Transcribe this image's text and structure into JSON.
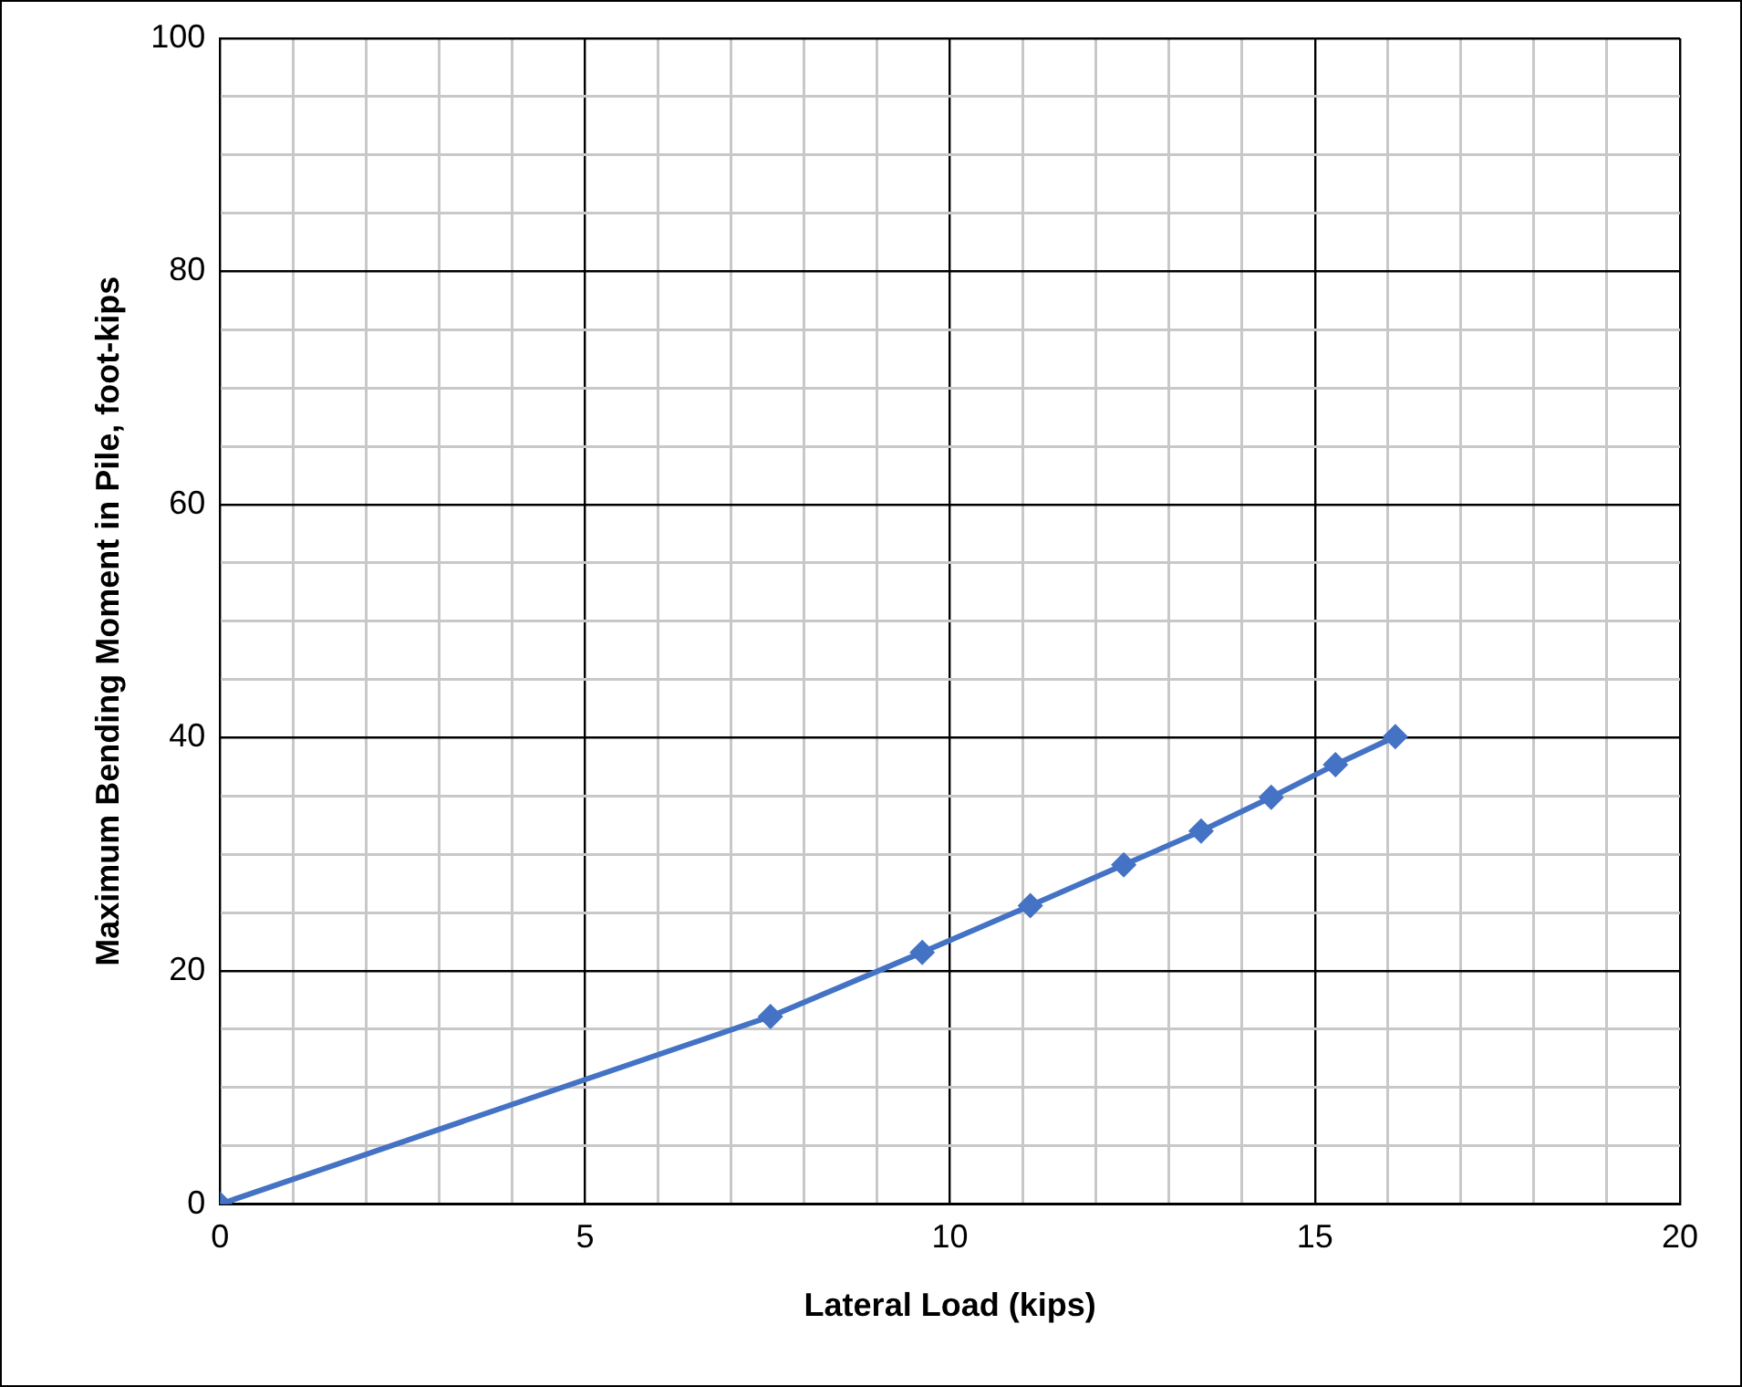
{
  "chart_data": {
    "type": "line",
    "xlabel": "Lateral Load (kips)",
    "ylabel": "Maximum Bending Moment in Pile, foot-kips",
    "x": [
      0,
      7.54,
      9.62,
      11.1,
      12.38,
      13.44,
      14.4,
      15.28,
      16.1
    ],
    "series": [
      {
        "color": "#4472c4",
        "values": [
          0,
          16.1,
          21.6,
          25.6,
          29.1,
          32.0,
          34.9,
          37.7,
          40.1
        ]
      }
    ],
    "xlim": [
      0,
      20
    ],
    "xticks": [
      0,
      {
        "value": 1,
        "label": null
      },
      {
        "value": 2,
        "label": null
      },
      {
        "value": 3,
        "label": null
      },
      {
        "value": 4,
        "label": null
      },
      5,
      {
        "value": 6,
        "label": null
      },
      {
        "value": 7,
        "label": null
      },
      {
        "value": 8,
        "label": null
      },
      {
        "value": 9,
        "label": null
      },
      10,
      {
        "value": 11,
        "label": null
      },
      {
        "value": 12,
        "label": null
      },
      {
        "value": 13,
        "label": null
      },
      {
        "value": 14,
        "label": null
      },
      15,
      {
        "value": 16,
        "label": null
      },
      {
        "value": 17,
        "label": null
      },
      {
        "value": 18,
        "label": null
      },
      {
        "value": 19,
        "label": null
      },
      20
    ],
    "ylim": [
      0,
      100
    ],
    "yticks": [
      0,
      {
        "value": 5,
        "label": null
      },
      {
        "value": 10,
        "label": null
      },
      {
        "value": 15,
        "label": null
      },
      20,
      {
        "value": 25,
        "label": null
      },
      {
        "value": 30,
        "label": null
      },
      {
        "value": 35,
        "label": null
      },
      40,
      {
        "value": 45,
        "label": null
      },
      {
        "value": 50,
        "label": null
      },
      {
        "value": 55,
        "label": null
      },
      60,
      {
        "value": 65,
        "label": null
      },
      {
        "value": 70,
        "label": null
      },
      {
        "value": 75,
        "label": null
      },
      80,
      {
        "value": 85,
        "label": null
      },
      {
        "value": 90,
        "label": null
      },
      {
        "value": 95,
        "label": null
      },
      100
    ],
    "grid": true,
    "legend": false,
    "marker": "diamond",
    "line_style": "solid"
  }
}
